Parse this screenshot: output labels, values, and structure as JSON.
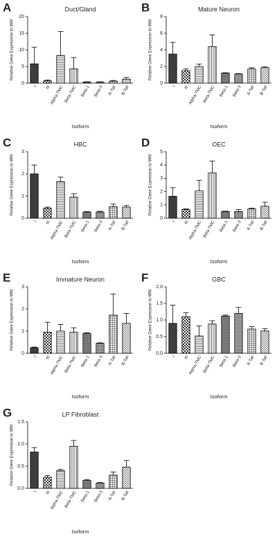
{
  "chart_data": [
    {
      "type": "bar",
      "label": "A",
      "title": "Duct/Gland",
      "ylabel": "Relative Gene Expression to WM",
      "xlabel": "Isoform",
      "categories": [
        "I",
        "III",
        "Alpha-TMC",
        "Beta-TMC",
        "Beta-1",
        "Beta-3",
        "A-Tail",
        "B-Tail"
      ],
      "values": [
        5.8,
        0.7,
        8.3,
        4.3,
        0.3,
        0.3,
        0.6,
        1.2
      ],
      "errors": [
        5,
        0.2,
        7.2,
        3.4,
        0.1,
        0.1,
        0.2,
        0.5
      ],
      "ylim": [
        0,
        20
      ],
      "yticks": [
        0,
        5,
        10,
        15,
        20
      ]
    },
    {
      "type": "bar",
      "label": "B",
      "title": "Mature Neuron",
      "ylabel": "Relative Gene Expression to WM",
      "xlabel": "Isoform",
      "categories": [
        "I",
        "III",
        "Alpha-TMC",
        "Beta-TMC",
        "Beta-1",
        "Beta-3",
        "A-Tail",
        "B-Tail"
      ],
      "values": [
        3.5,
        1.5,
        2.0,
        4.4,
        1.2,
        1.1,
        1.7,
        1.85
      ],
      "errors": [
        1.4,
        0.2,
        0.3,
        1.4,
        0.05,
        0.05,
        0.15,
        0.1
      ],
      "ylim": [
        0,
        8
      ],
      "yticks": [
        0,
        2,
        4,
        6,
        8
      ]
    },
    {
      "type": "bar",
      "label": "C",
      "title": "HBC",
      "ylabel": "Relative Gene Expression to WM",
      "xlabel": "Isoform",
      "categories": [
        "I",
        "III",
        "Alpha-TMC",
        "Beta-TMC",
        "Beta-1",
        "Beta-3",
        "A-Tail",
        "B-Tail"
      ],
      "values": [
        2.0,
        0.45,
        1.65,
        0.95,
        0.28,
        0.28,
        0.52,
        0.5
      ],
      "errors": [
        0.4,
        0.05,
        0.2,
        0.15,
        0.02,
        0.03,
        0.12,
        0.07
      ],
      "ylim": [
        0,
        3
      ],
      "yticks": [
        0,
        1,
        2,
        3
      ]
    },
    {
      "type": "bar",
      "label": "D",
      "title": "OEC",
      "ylabel": "Relative Gene Expression to WM",
      "xlabel": "Isoform",
      "categories": [
        "I",
        "III",
        "Alpha-TMC",
        "Beta-TMC",
        "Beta-1",
        "Beta-3",
        "A-Tail",
        "B-Tail"
      ],
      "values": [
        1.65,
        0.65,
        2.05,
        3.4,
        0.5,
        0.5,
        0.7,
        0.9
      ],
      "errors": [
        0.65,
        0.05,
        0.8,
        0.9,
        0.03,
        0.15,
        0.05,
        0.3
      ],
      "ylim": [
        0,
        5
      ],
      "yticks": [
        0,
        1,
        2,
        3,
        4,
        5
      ]
    },
    {
      "type": "bar",
      "label": "E",
      "title": "Immature Neuron",
      "ylabel": "Relative Gene Expression to WM",
      "xlabel": "Isoform",
      "categories": [
        "I",
        "III",
        "Alpha-TMC",
        "Beta-TMC",
        "Beta-1",
        "Beta-3",
        "A-Tail",
        "B-Tail"
      ],
      "values": [
        0.25,
        0.95,
        1.0,
        0.95,
        0.9,
        0.45,
        1.72,
        1.35
      ],
      "errors": [
        0.03,
        0.45,
        0.3,
        0.2,
        0.03,
        0.02,
        0.95,
        0.45
      ],
      "ylim": [
        0,
        3
      ],
      "yticks": [
        0,
        1,
        2,
        3
      ]
    },
    {
      "type": "bar",
      "label": "F",
      "title": "GBC",
      "ylabel": "Relative Gene Expression to WM",
      "xlabel": "Isoform",
      "categories": [
        "I",
        "III",
        "Alpha-TMC",
        "Beta-TMC",
        "Beta-1",
        "Beta-3",
        "A-Tail",
        "B-Tail"
      ],
      "values": [
        0.9,
        1.1,
        0.52,
        0.88,
        1.12,
        1.2,
        0.73,
        0.67
      ],
      "errors": [
        0.55,
        0.12,
        0.3,
        0.1,
        0.03,
        0.18,
        0.07,
        0.07
      ],
      "ylim": [
        0,
        2
      ],
      "yticks": [
        {
          "value": 0,
          "label": "0.0"
        },
        0.5,
        {
          "value": 1,
          "label": "1.0"
        },
        1.5,
        {
          "value": 2,
          "label": "2.0"
        }
      ]
    },
    {
      "type": "bar",
      "label": "G",
      "title": "LP Fibroblast",
      "ylabel": "Relative Gene Expression to WM",
      "xlabel": "Isoform",
      "categories": [
        "I",
        "III",
        "Alpha-TMC",
        "Beta-TMC",
        "Beta-1",
        "Beta-3",
        "A-Tail",
        "B-Tail"
      ],
      "values": [
        0.82,
        0.25,
        0.4,
        0.95,
        0.18,
        0.12,
        0.3,
        0.48
      ],
      "errors": [
        0.1,
        0.04,
        0.03,
        0.13,
        0.02,
        0.01,
        0.07,
        0.15
      ],
      "ylim": [
        0,
        1.5
      ],
      "yticks": [
        {
          "value": 0,
          "label": "0.0"
        },
        0.5,
        {
          "value": 1,
          "label": "1.0"
        },
        1.5
      ]
    }
  ]
}
